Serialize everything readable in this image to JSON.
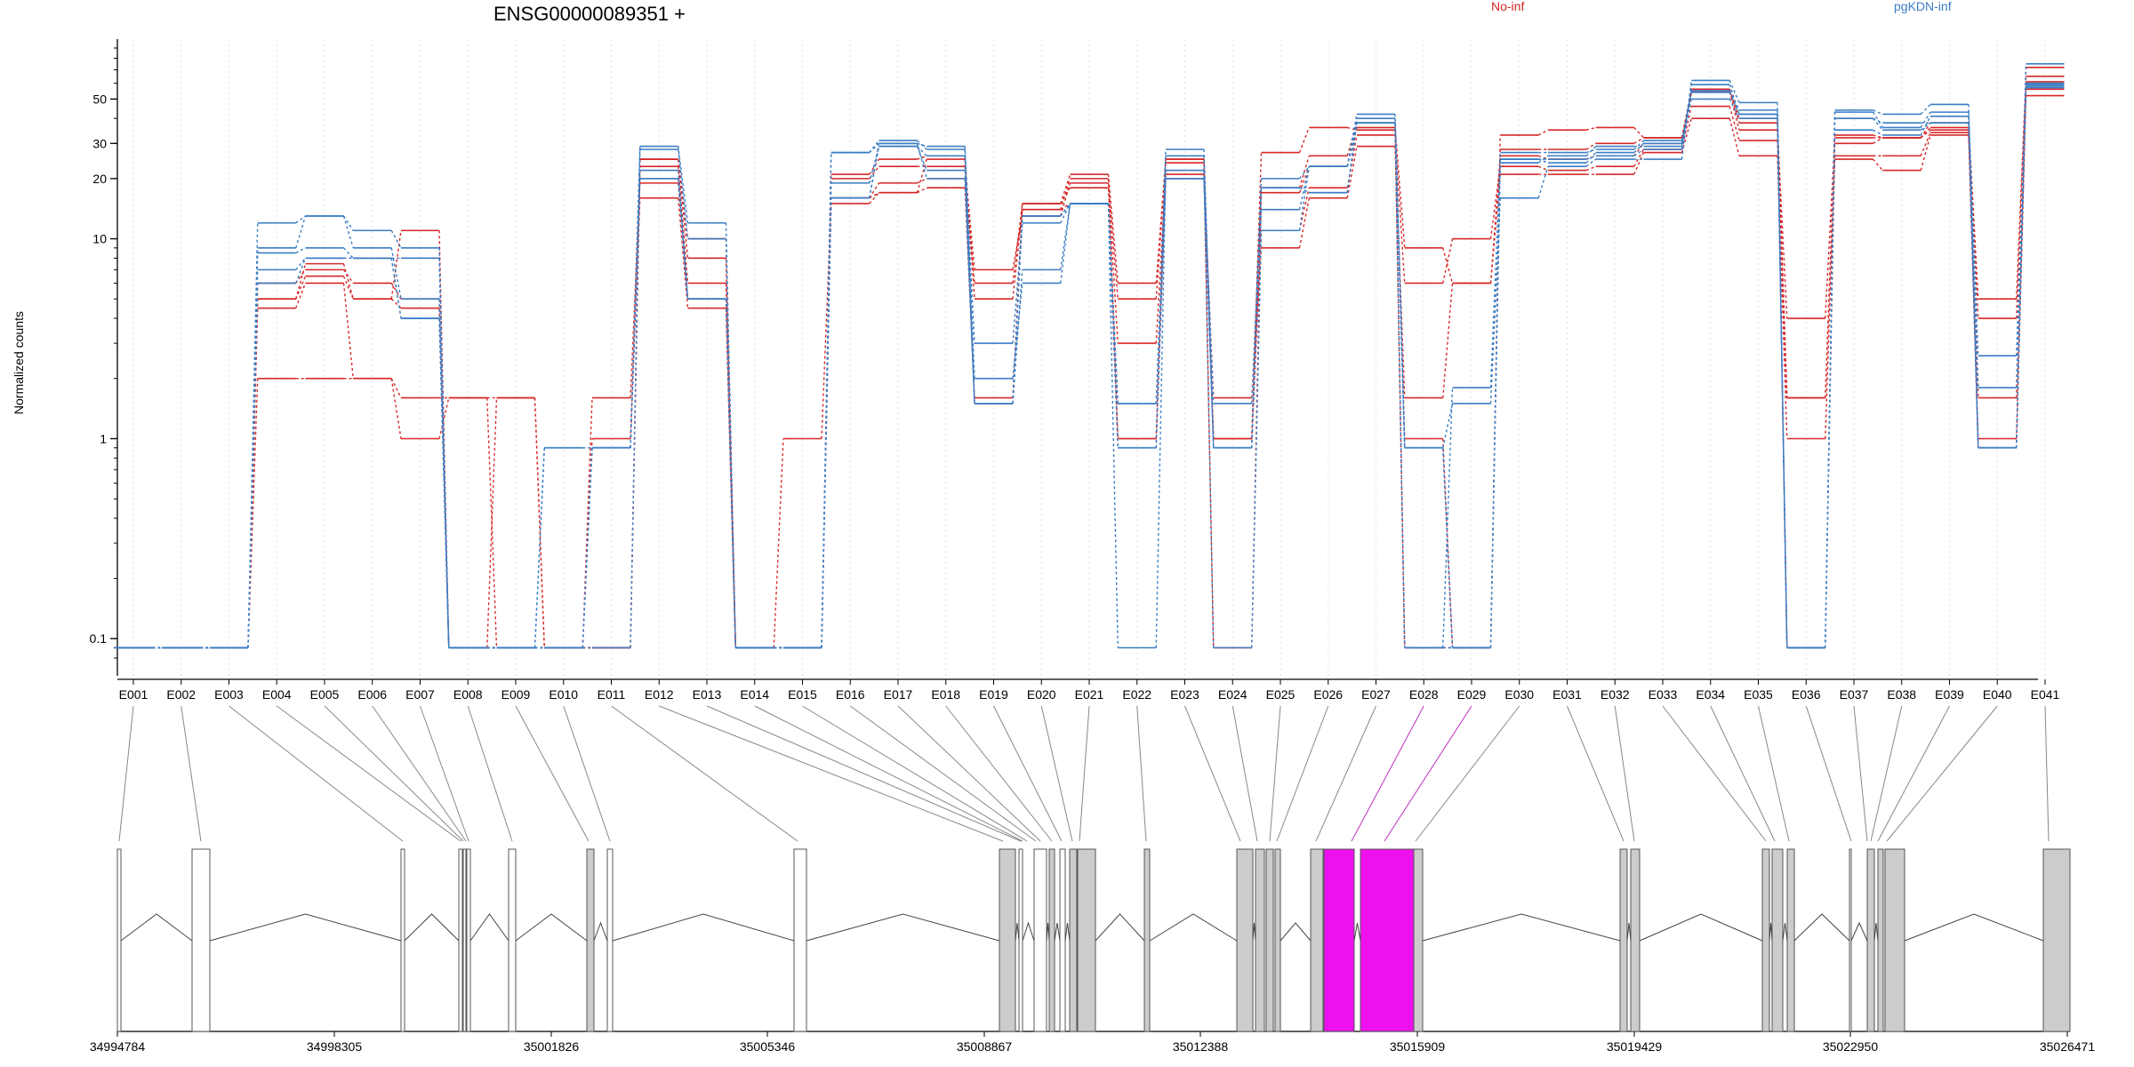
{
  "title": "ENSG00000089351 +",
  "legend": [
    {
      "label": "No-inf",
      "color": "#d62728"
    },
    {
      "label": "pgKDN-inf",
      "color": "#3a7dc4"
    }
  ],
  "highlight_color": "#ee11ee",
  "chart_data": {
    "type": "line",
    "title": "ENSG00000089351 +",
    "xlabel": "",
    "ylabel": "Normalized counts",
    "y_scale": "log",
    "ylim": [
      0.08,
      90
    ],
    "y_ticks": [
      "0.1",
      "1",
      "10",
      "20",
      "30",
      "50"
    ],
    "grid": "vertical dotted lines at each exon",
    "legend_position": "top",
    "categories": [
      "E001",
      "E002",
      "E003",
      "E004",
      "E005",
      "E006",
      "E007",
      "E008",
      "E009",
      "E010",
      "E011",
      "E012",
      "E013",
      "E014",
      "E015",
      "E016",
      "E017",
      "E018",
      "E019",
      "E020",
      "E021",
      "E022",
      "E023",
      "E024",
      "E025",
      "E026",
      "E027",
      "E028",
      "E029",
      "E030",
      "E031",
      "E032",
      "E033",
      "E034",
      "E035",
      "E036",
      "E037",
      "E038",
      "E039",
      "E040",
      "E041"
    ],
    "series": [
      {
        "group": "No-inf",
        "values": [
          0.09,
          0.09,
          0.09,
          2.0,
          2.0,
          2.0,
          1.0,
          1.6,
          1.6,
          0.09,
          1.0,
          16,
          4.5,
          0.09,
          1.0,
          15,
          17,
          18,
          1.6,
          14,
          15,
          1.0,
          20,
          1.6,
          9,
          16,
          29,
          1.6,
          6,
          21,
          21,
          21,
          27,
          40,
          26,
          1.0,
          25,
          22,
          33,
          1.0,
          52
        ]
      },
      {
        "group": "No-inf",
        "values": [
          0.09,
          0.09,
          0.09,
          4.5,
          6.0,
          2.0,
          1.6,
          1.6,
          0.09,
          0.09,
          1.6,
          19,
          5.0,
          0.09,
          0.09,
          16,
          19,
          20,
          6,
          15,
          18,
          3,
          21,
          1.0,
          11,
          18,
          33,
          6,
          10,
          23,
          22,
          23,
          28,
          46,
          31,
          1.6,
          26,
          26,
          34,
          1.6,
          56
        ]
      },
      {
        "group": "No-inf",
        "values": [
          0.09,
          0.09,
          0.09,
          5.0,
          6.5,
          5.0,
          4.5,
          0.09,
          1.6,
          0.09,
          0.09,
          23,
          6.0,
          0.09,
          0.09,
          20,
          23,
          23,
          7,
          13,
          19,
          5,
          24,
          0.09,
          17,
          23,
          36,
          9,
          6,
          26,
          25,
          26,
          30,
          54,
          35,
          4,
          32,
          32,
          36,
          4,
          61
        ]
      },
      {
        "group": "No-inf",
        "values": [
          0.09,
          0.09,
          0.09,
          5.0,
          7.5,
          5.0,
          11,
          0.09,
          0.09,
          0.09,
          0.09,
          25,
          8.0,
          0.09,
          0.09,
          21,
          25,
          26,
          5,
          14,
          20,
          1.0,
          25,
          1.0,
          18,
          26,
          38,
          1.0,
          0.09,
          28,
          28,
          30,
          32,
          56,
          40,
          1.6,
          33,
          32,
          38,
          5,
          65
        ]
      },
      {
        "group": "No-inf",
        "values": [
          0.09,
          0.09,
          0.09,
          6.0,
          7.0,
          6.0,
          5.0,
          0.09,
          0.09,
          0.09,
          0.09,
          25,
          10,
          0.09,
          0.09,
          16,
          17,
          25,
          1.5,
          15,
          21,
          6,
          25,
          1.0,
          27,
          36,
          35,
          0.09,
          0.09,
          33,
          35,
          36,
          32,
          55,
          38,
          0.09,
          30,
          32,
          35,
          0.9,
          72
        ]
      },
      {
        "group": "pgKDN-inf",
        "values": [
          0.09,
          0.09,
          0.09,
          12,
          13,
          11,
          9,
          0.09,
          0.09,
          0.9,
          0.9,
          29,
          12,
          0.09,
          0.09,
          27,
          30,
          29,
          2,
          6,
          15,
          0.9,
          28,
          0.9,
          20,
          23,
          42,
          0.9,
          1.5,
          16,
          23,
          25,
          25,
          62,
          48,
          0.09,
          44,
          42,
          47,
          0.9,
          75
        ]
      },
      {
        "group": "pgKDN-inf",
        "values": [
          0.09,
          0.09,
          0.09,
          9,
          13,
          9,
          5,
          0.09,
          0.09,
          0.09,
          0.09,
          28,
          10,
          0.09,
          0.09,
          27,
          31,
          28,
          1.5,
          7,
          15,
          1.5,
          26,
          0.9,
          14,
          23,
          38,
          0.09,
          1.8,
          25,
          25,
          26,
          28,
          59,
          42,
          0.09,
          43,
          36,
          43,
          1.8,
          60
        ]
      },
      {
        "group": "pgKDN-inf",
        "values": [
          0.09,
          0.09,
          0.09,
          8.5,
          9,
          8,
          8,
          0.09,
          0.09,
          0.9,
          0.9,
          22,
          5,
          0.09,
          0.09,
          19,
          29,
          26,
          3,
          12,
          15,
          0.09,
          22,
          0.09,
          11,
          23,
          38,
          0.09,
          0.09,
          24,
          26,
          29,
          29,
          55,
          44,
          0.09,
          35,
          33,
          41,
          2.6,
          58
        ]
      },
      {
        "group": "pgKDN-inf",
        "values": [
          0.09,
          0.09,
          0.09,
          7,
          8,
          8,
          4,
          0.09,
          0.09,
          0.09,
          0.9,
          20,
          5,
          0.09,
          0.09,
          16,
          29,
          22,
          1.5,
          13,
          15,
          1.5,
          20,
          0.9,
          18,
          17,
          40,
          0.9,
          0.09,
          27,
          27,
          28,
          31,
          54,
          42,
          0.09,
          40,
          38,
          38,
          0.9,
          59
        ]
      },
      {
        "group": "pgKDN-inf",
        "values": [
          0.09,
          0.09,
          0.09,
          6,
          8,
          8,
          4,
          0.09,
          0.09,
          0.09,
          0.9,
          20,
          5,
          0.09,
          0.09,
          16,
          30,
          20,
          1.5,
          13,
          15,
          0.9,
          20,
          1.5,
          18,
          17,
          38,
          0.9,
          0.09,
          25,
          24,
          27,
          30,
          50,
          40,
          0.09,
          40,
          35,
          38,
          0.9,
          57
        ]
      }
    ],
    "genomic_coordinates": [
      "34994784",
      "34998305",
      "35001826",
      "35005346",
      "35008867",
      "35012388",
      "35015909",
      "35019429",
      "35022950",
      "35026471"
    ]
  }
}
